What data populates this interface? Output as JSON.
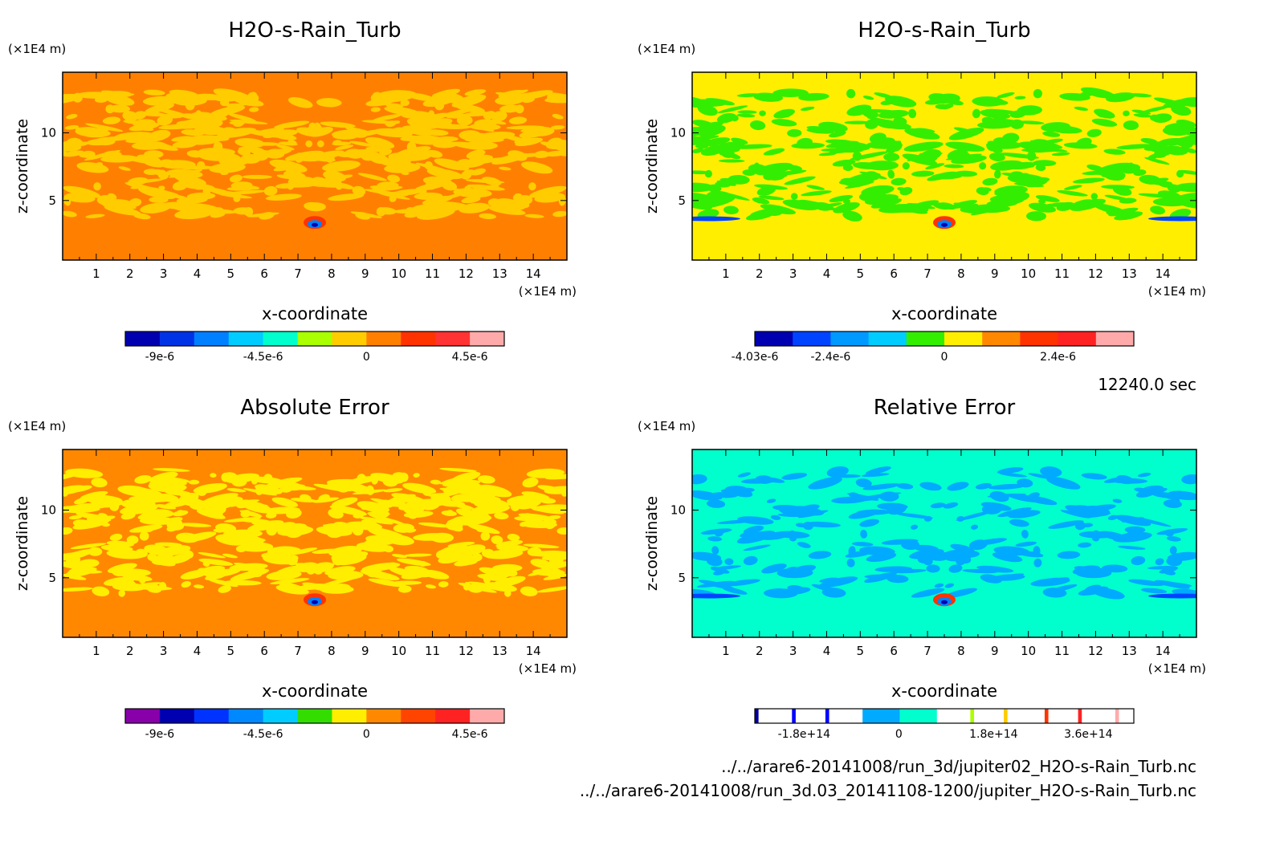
{
  "panels": [
    {
      "title": "H2O-s-Rain_Turb",
      "unit_z": "(×1E4 m)",
      "unit_x": "(×1E4 m)",
      "xlabel": "x-coordinate",
      "ylabel": "z-coordinate",
      "field": {
        "background": "#ff8000",
        "blob": "#ffcc00",
        "blob_frac": 0.38,
        "seed": 11
      },
      "colorbar": {
        "colors": [
          "#0000b0",
          "#0033e6",
          "#0080ff",
          "#00ccff",
          "#00ffcc",
          "#aaff00",
          "#ffcc00",
          "#ff8000",
          "#ff3300",
          "#ff3333",
          "#ffaaaa"
        ],
        "ticks": [
          {
            "value": "-9e-6",
            "index": 1
          },
          {
            "value": "-4.5e-6",
            "index": 4
          },
          {
            "value": "0",
            "index": 7
          },
          {
            "value": "4.5e-6",
            "index": 10
          }
        ]
      }
    },
    {
      "title": "H2O-s-Rain_Turb",
      "unit_z": "(×1E4 m)",
      "unit_x": "(×1E4 m)",
      "xlabel": "x-coordinate",
      "ylabel": "z-coordinate",
      "field": {
        "background": "#ffee00",
        "blob": "#33ee00",
        "blob_frac": 0.3,
        "seed": 23
      },
      "colorbar": {
        "colors": [
          "#0000b0",
          "#0044ff",
          "#0099ff",
          "#00ccff",
          "#33ee00",
          "#ffee00",
          "#ff8800",
          "#ff3300",
          "#ff2222",
          "#ffaaaa"
        ],
        "ticks": [
          {
            "value": "-4.03e-6",
            "index": 0
          },
          {
            "value": "-2.4e-6",
            "index": 2
          },
          {
            "value": "0",
            "index": 5
          },
          {
            "value": "2.4e-6",
            "index": 8
          }
        ]
      }
    },
    {
      "title": "Absolute Error",
      "unit_z": "(×1E4 m)",
      "unit_x": "(×1E4 m)",
      "xlabel": "x-coordinate",
      "ylabel": "z-coordinate",
      "field": {
        "background": "#ff8800",
        "blob": "#ffee00",
        "blob_frac": 0.38,
        "seed": 37
      },
      "colorbar": {
        "colors": [
          "#8800aa",
          "#0000b0",
          "#0033ff",
          "#0088ff",
          "#00ccff",
          "#33dd00",
          "#ffee00",
          "#ff8800",
          "#ff4400",
          "#ff2222",
          "#ffaaaa"
        ],
        "ticks": [
          {
            "value": "-9e-6",
            "index": 1
          },
          {
            "value": "-4.5e-6",
            "index": 4
          },
          {
            "value": "0",
            "index": 7
          },
          {
            "value": "4.5e-6",
            "index": 10
          }
        ]
      }
    },
    {
      "title": "Relative Error",
      "unit_z": "(×1E4 m)",
      "unit_x": "(×1E4 m)",
      "xlabel": "x-coordinate",
      "ylabel": "z-coordinate",
      "field": {
        "background": "#00ffcc",
        "blob": "#00aaff",
        "blob_frac": 0.2,
        "seed": 53
      },
      "colorbar": {
        "colors": [
          "#000099",
          "#ffffff",
          "#0000ff",
          "#ffffff",
          "#0000ff",
          "#ffffff",
          "#00aaff",
          "#00ffcc",
          "#ffffff",
          "#aaff00",
          "#ffffff",
          "#ffcc00",
          "#ffffff",
          "#ff3300",
          "#ffffff",
          "#ff2222",
          "#ffffff",
          "#ffaaaa",
          "#ffffff"
        ],
        "widths": [
          0.01,
          0.09,
          0.01,
          0.08,
          0.01,
          0.09,
          0.1,
          0.1,
          0.09,
          0.01,
          0.08,
          0.01,
          0.1,
          0.01,
          0.08,
          0.01,
          0.09,
          0.01,
          0.04
        ],
        "ticks": [
          {
            "value": "-1.8e+14",
            "pos": 0.13
          },
          {
            "value": "0",
            "pos": 0.38
          },
          {
            "value": "1.8e+14",
            "pos": 0.63
          },
          {
            "value": "3.6e+14",
            "pos": 0.88
          }
        ]
      }
    }
  ],
  "time_label": "12240.0 sec",
  "file_paths": [
    "../../arare6-20141008/run_3d/jupiter02_H2O-s-Rain_Turb.nc",
    "../../arare6-20141008/run_3d.03_20141108-1200/jupiter_H2O-s-Rain_Turb.nc"
  ],
  "chart_data": [
    {
      "type": "heatmap",
      "title": "H2O-s-Rain_Turb",
      "xlabel": "x-coordinate",
      "ylabel": "z-coordinate",
      "x_ticks": [
        1,
        2,
        3,
        4,
        5,
        6,
        7,
        8,
        9,
        10,
        11,
        12,
        13,
        14
      ],
      "y_ticks": [
        5,
        10
      ],
      "xlim": [
        0,
        15
      ],
      "ylim": [
        0,
        15
      ],
      "colorbar_ticks": [
        "-9e-6",
        "-4.5e-6",
        "0",
        "4.5e-6"
      ]
    },
    {
      "type": "heatmap",
      "title": "H2O-s-Rain_Turb",
      "xlabel": "x-coordinate",
      "ylabel": "z-coordinate",
      "x_ticks": [
        1,
        2,
        3,
        4,
        5,
        6,
        7,
        8,
        9,
        10,
        11,
        12,
        13,
        14
      ],
      "y_ticks": [
        5,
        10
      ],
      "xlim": [
        0,
        15
      ],
      "ylim": [
        0,
        15
      ],
      "colorbar_ticks": [
        "-4.03e-6",
        "-2.4e-6",
        "0",
        "2.4e-6"
      ]
    },
    {
      "type": "heatmap",
      "title": "Absolute Error",
      "xlabel": "x-coordinate",
      "ylabel": "z-coordinate",
      "x_ticks": [
        1,
        2,
        3,
        4,
        5,
        6,
        7,
        8,
        9,
        10,
        11,
        12,
        13,
        14
      ],
      "y_ticks": [
        5,
        10
      ],
      "xlim": [
        0,
        15
      ],
      "ylim": [
        0,
        15
      ],
      "colorbar_ticks": [
        "-9e-6",
        "-4.5e-6",
        "0",
        "4.5e-6"
      ]
    },
    {
      "type": "heatmap",
      "title": "Relative Error",
      "xlabel": "x-coordinate",
      "ylabel": "z-coordinate",
      "x_ticks": [
        1,
        2,
        3,
        4,
        5,
        6,
        7,
        8,
        9,
        10,
        11,
        12,
        13,
        14
      ],
      "y_ticks": [
        5,
        10
      ],
      "xlim": [
        0,
        15
      ],
      "ylim": [
        0,
        15
      ],
      "colorbar_ticks": [
        "-1.8e+14",
        "0",
        "1.8e+14",
        "3.6e+14"
      ]
    }
  ]
}
